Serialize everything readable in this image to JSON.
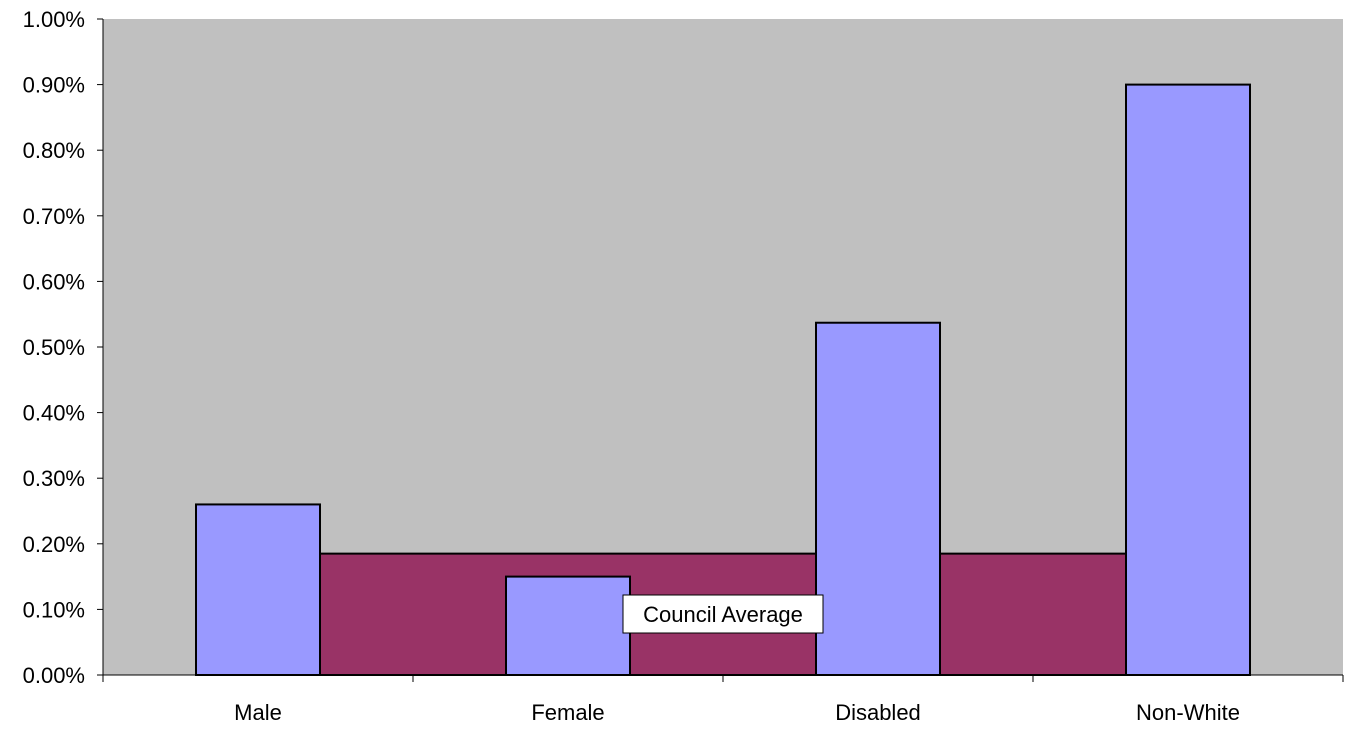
{
  "chart_data": {
    "type": "bar",
    "categories": [
      "Male",
      "Female",
      "Disabled",
      "Non-White"
    ],
    "series": [
      {
        "values": [
          0.26,
          0.15,
          0.537,
          0.9
        ],
        "color": "#9999ff",
        "style": "bar"
      },
      {
        "name": "Council Average",
        "values": [
          0.185,
          0.185,
          0.185,
          0.185
        ],
        "color": "#993366",
        "style": "area"
      }
    ],
    "y_unit": "%",
    "ylim": [
      0,
      1.0
    ],
    "yticks": [
      "0.00%",
      "0.10%",
      "0.20%",
      "0.30%",
      "0.40%",
      "0.50%",
      "0.60%",
      "0.70%",
      "0.80%",
      "0.90%",
      "1.00%"
    ],
    "plot_background": "#c0c0c0",
    "grid": false,
    "legend": "none",
    "annotations": [
      {
        "text": "Council Average",
        "series": "Council Average"
      }
    ]
  }
}
